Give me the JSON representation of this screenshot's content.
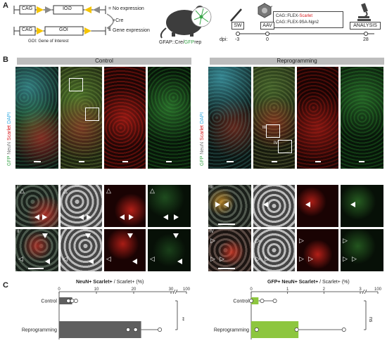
{
  "panel_labels": {
    "a": "A",
    "b": "B",
    "c": "C"
  },
  "construct": {
    "cag": "CAG",
    "goi_inverted": "GOI",
    "goi": "GOI",
    "no_expression": "= No expression",
    "gene_expression": "= Gene expression",
    "cre": "+Cre",
    "goi_note": "GOI: Gene of Interest"
  },
  "mouse": {
    "genotype_prefix": "GFAP::Cre/",
    "genotype_gfp": "GFP",
    "genotype_suffix": "rep"
  },
  "timeline": {
    "sw": "SW",
    "aav": "AAV",
    "analysis": "ANALYSIS",
    "dpi_label": "dpi:",
    "days": [
      "-3",
      "0",
      "28"
    ],
    "vectors": {
      "line1_prefix": "CAG::FLEX-",
      "line1_scarlet": "Scarlet",
      "line2": "CAG::FLEX-9SA-Ngn2"
    }
  },
  "panel_b": {
    "control_title": "Control",
    "reprogramming_title": "Reprogramming",
    "stain_labels": {
      "gfp": "GFP",
      "neun": "NeuN",
      "scarlet": "Scarlet",
      "dapi": "DAPI"
    },
    "roman": {
      "i": "I",
      "ii": "II",
      "iii": "III",
      "iv": "IV"
    }
  },
  "chart_data": [
    {
      "type": "bar",
      "title_bold": "NeuN+ Scarlet+",
      "title_rest": " / Scarlet+ (%)",
      "categories": [
        "Control",
        "Reprogramming"
      ],
      "values": [
        3.5,
        22
      ],
      "points": [
        [
          2.5,
          3.5,
          4.5
        ],
        [
          18.5,
          20.5,
          27
        ]
      ],
      "ticks": [
        "0",
        "10",
        "20",
        "30",
        "100"
      ],
      "xlim": [
        0,
        100
      ],
      "significance": "**",
      "color": "#5f5f5f"
    },
    {
      "type": "bar",
      "title_bold": "GFP+ NeuN+ Scarlet+",
      "title_rest": " / Scarlet+ (%)",
      "categories": [
        "Control",
        "Reprogramming"
      ],
      "values": [
        0.2,
        1.3
      ],
      "points": [
        [
          0.0,
          0.3,
          0.65
        ],
        [
          0.15,
          1.25,
          2.55
        ]
      ],
      "ticks": [
        "0",
        "1",
        "2",
        "3",
        "100"
      ],
      "xlim": [
        0,
        100
      ],
      "significance": "ns",
      "color": "#8dc63f"
    }
  ],
  "colors": {
    "gfp": "#3aa64a",
    "scarlet": "#d7191c",
    "dapi": "#2fa9e1",
    "header": "#bdbdbd"
  }
}
